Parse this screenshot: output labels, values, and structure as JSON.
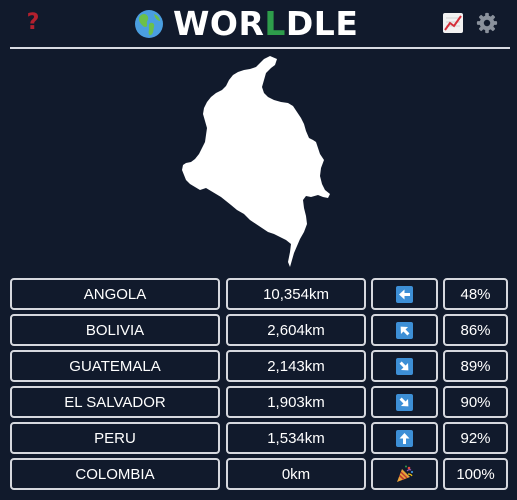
{
  "header": {
    "help_symbol": "?",
    "title_part1": "WOR",
    "title_accent": "L",
    "title_part2": "DLE",
    "icons": [
      "globe-icon",
      "help-icon",
      "stats-chart-icon",
      "settings-gear-icon"
    ]
  },
  "colors": {
    "background": "#111a2c",
    "accent_green": "#2e9d4b",
    "help_red": "#b3202e",
    "arrow_blue": "#3d8fd6",
    "border": "#d6d8de"
  },
  "mystery": {
    "shape_icon": "country-silhouette-icon"
  },
  "guesses": [
    {
      "country": "ANGOLA",
      "distance": "10,354km",
      "direction": "W",
      "direction_icon": "arrow-left-icon",
      "proximity": "48%"
    },
    {
      "country": "BOLIVIA",
      "distance": "2,604km",
      "direction": "NW",
      "direction_icon": "arrow-up-left-icon",
      "proximity": "86%"
    },
    {
      "country": "GUATEMALA",
      "distance": "2,143km",
      "direction": "SE",
      "direction_icon": "arrow-down-right-icon",
      "proximity": "89%"
    },
    {
      "country": "EL SALVADOR",
      "distance": "1,903km",
      "direction": "SE",
      "direction_icon": "arrow-down-right-icon",
      "proximity": "90%"
    },
    {
      "country": "PERU",
      "distance": "1,534km",
      "direction": "N",
      "direction_icon": "arrow-up-icon",
      "proximity": "92%"
    },
    {
      "country": "COLOMBIA",
      "distance": "0km",
      "direction": "",
      "direction_icon": "party-popper-icon",
      "proximity": "100%"
    }
  ]
}
